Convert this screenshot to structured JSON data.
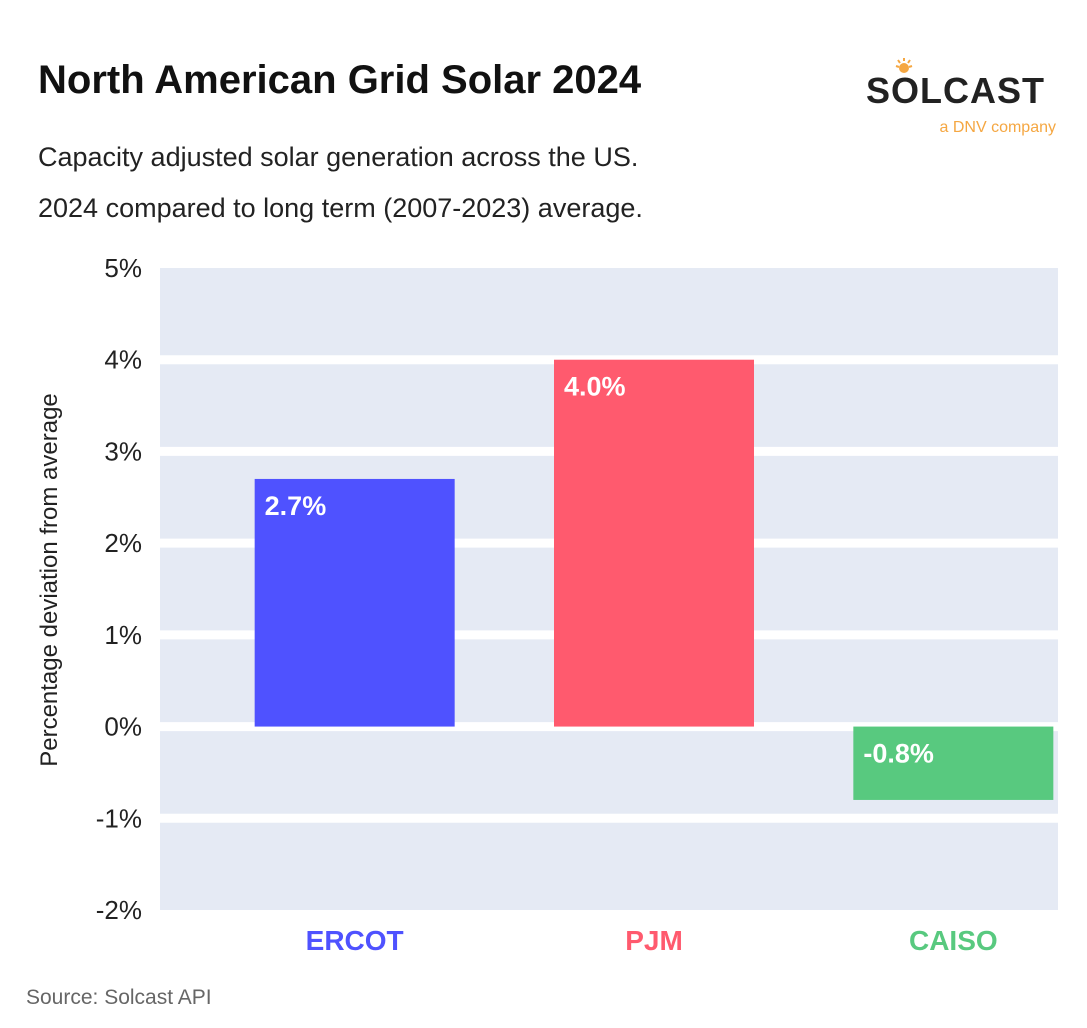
{
  "header": {
    "title": "North American Grid Solar 2024",
    "subtitle_line1": "Capacity adjusted solar generation across the US.",
    "subtitle_line2": "2024 compared to long term (2007-2023) average."
  },
  "logo": {
    "name": "SOLCAST",
    "tagline": "a DNV company",
    "accent": "#f5a742"
  },
  "footer": {
    "source": "Source: Solcast API"
  },
  "chart_data": {
    "type": "bar",
    "title": "North American Grid Solar 2024",
    "xlabel": "",
    "ylabel": "Percentage deviation from average",
    "categories": [
      "ERCOT",
      "PJM",
      "CAISO"
    ],
    "values": [
      2.7,
      4.0,
      -0.8
    ],
    "data_labels": [
      "2.7%",
      "4.0%",
      "-0.8%"
    ],
    "colors": [
      "#4f52ff",
      "#ff5a6e",
      "#58c97f"
    ],
    "ylim": [
      -2,
      5
    ],
    "yticks": [
      5,
      4,
      3,
      2,
      1,
      0,
      -1,
      -2
    ],
    "ytick_labels": [
      "5%",
      "4%",
      "3%",
      "2%",
      "1%",
      "0%",
      "-1%",
      "-2%"
    ],
    "grid": true,
    "background": "#e5eaf4"
  }
}
